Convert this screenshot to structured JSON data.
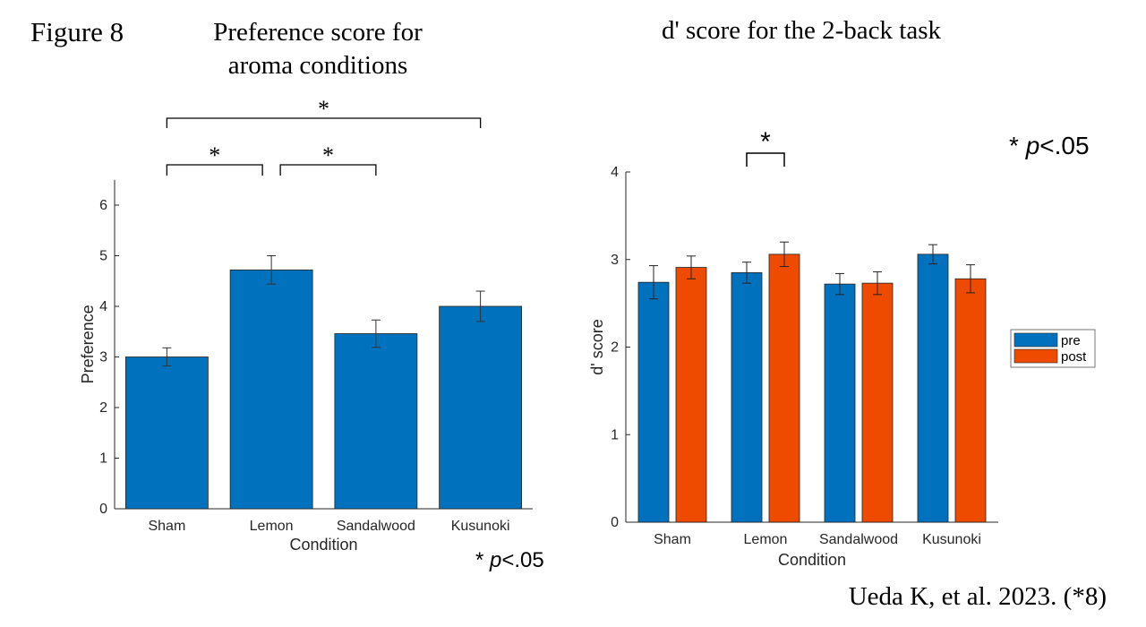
{
  "figure_label": "Figure 8",
  "citation": "Ueda K, et al. 2023. (*8)",
  "colors": {
    "pre": "#0072BD",
    "post": "#EE4B00",
    "axis": "#262626"
  },
  "chart_data": [
    {
      "type": "bar",
      "title_lines": [
        "Preference score for",
        "aroma conditions"
      ],
      "xlabel": "Condition",
      "ylabel": "Preference",
      "categories": [
        "Sham",
        "Lemon",
        "Sandalwood",
        "Kusunoki"
      ],
      "values": [
        3.0,
        4.72,
        3.46,
        4.0
      ],
      "errors": [
        0.18,
        0.28,
        0.27,
        0.3
      ],
      "ylim": [
        0,
        6.5
      ],
      "yticks": [
        "0",
        "1",
        "2",
        "3",
        "4",
        "5",
        "6"
      ],
      "significance": [
        {
          "from": "Sham",
          "to": "Lemon",
          "label": "*"
        },
        {
          "from": "Lemon",
          "to": "Sandalwood",
          "label": "*"
        },
        {
          "from": "Sham",
          "to": "Kusunoki",
          "label": "*"
        }
      ],
      "note": {
        "star": "*",
        "p": "p",
        "rest": "<.05"
      }
    },
    {
      "type": "bar",
      "title": "d' score for the 2-back task",
      "xlabel": "Condition",
      "ylabel": "d' score",
      "categories": [
        "Sham",
        "Lemon",
        "Sandalwood",
        "Kusunoki"
      ],
      "series": [
        {
          "name": "pre",
          "values": [
            2.74,
            2.85,
            2.72,
            3.06
          ],
          "errors": [
            0.19,
            0.12,
            0.12,
            0.11
          ]
        },
        {
          "name": "post",
          "values": [
            2.91,
            3.06,
            2.73,
            2.78
          ],
          "errors": [
            0.13,
            0.14,
            0.13,
            0.16
          ]
        }
      ],
      "ylim": [
        0,
        4
      ],
      "yticks": [
        "0",
        "1",
        "2",
        "3",
        "4"
      ],
      "significance": [
        {
          "category": "Lemon",
          "between": [
            "pre",
            "post"
          ],
          "label": "*"
        }
      ],
      "legend_position": "right",
      "note": {
        "star": "*",
        "p": "p",
        "rest": "<.05"
      }
    }
  ]
}
